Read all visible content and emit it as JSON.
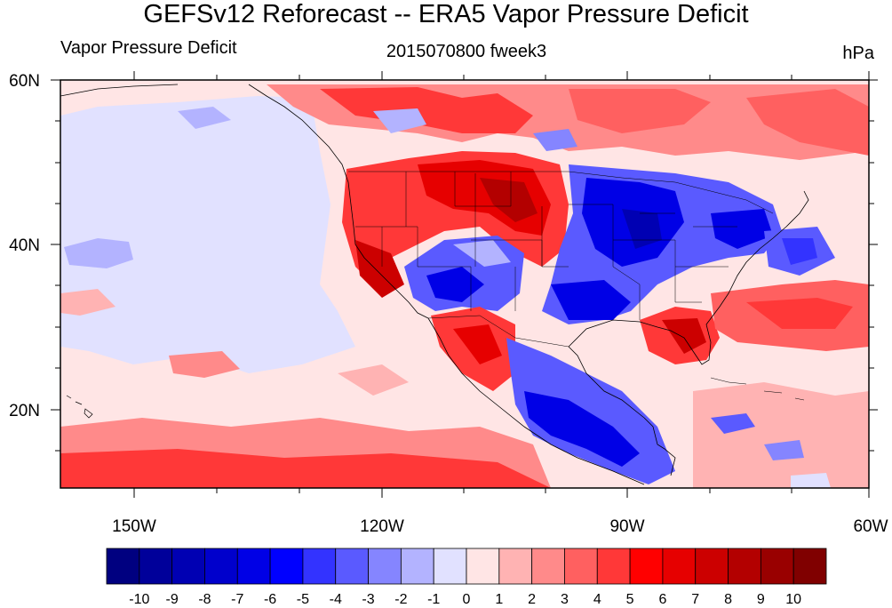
{
  "title": "GEFSv12 Reforecast -- ERA5 Vapor Pressure Deficit",
  "subtitle_left": "Vapor Pressure Deficit",
  "subtitle_center": "2015070800 fweek3",
  "subtitle_right": "hPa",
  "map": {
    "lon_range": [
      -160,
      -60
    ],
    "lat_range": [
      10,
      60
    ],
    "lon_tick_labels": [
      "150W",
      "120W",
      "90W",
      "60W"
    ],
    "lat_tick_labels": [
      "20N",
      "40N",
      "60N"
    ]
  },
  "colorbar": {
    "labels": [
      "-10",
      "-9",
      "-8",
      "-7",
      "-6",
      "-5",
      "-4",
      "-3",
      "-2",
      "-1",
      "0",
      "1",
      "2",
      "3",
      "4",
      "5",
      "6",
      "7",
      "8",
      "9",
      "10"
    ],
    "colors": [
      "#000080",
      "#00009a",
      "#0000b3",
      "#0000cc",
      "#0000e6",
      "#0000ff",
      "#3333ff",
      "#5a5aff",
      "#8585ff",
      "#b3b3ff",
      "#e1e1ff",
      "#ffe5e5",
      "#ffb3b3",
      "#ff8a8a",
      "#ff6060",
      "#ff3838",
      "#ff0000",
      "#e60000",
      "#cc0000",
      "#b30000",
      "#990000",
      "#800000"
    ]
  }
}
